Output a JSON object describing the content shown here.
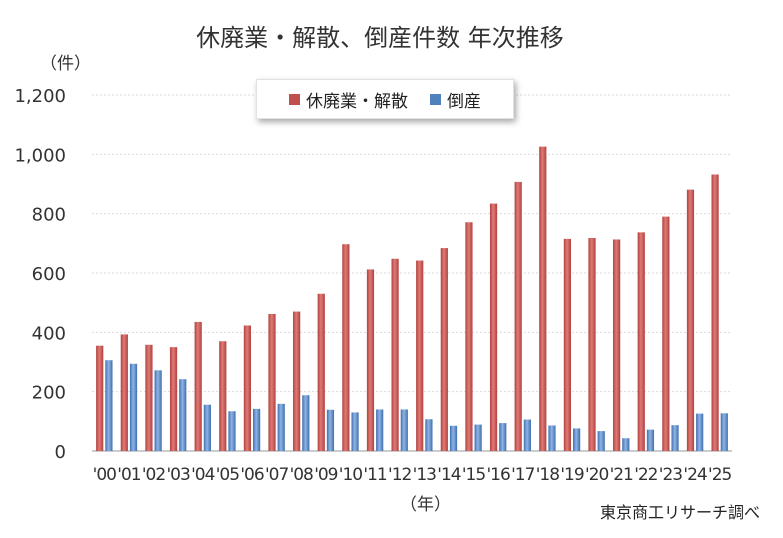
{
  "colors": {
    "closure": "#c0504d",
    "bankruptcy": "#4f81bd",
    "grid": "#d9d9d9",
    "text": "#333333"
  },
  "chart_data": {
    "type": "bar",
    "title": "休廃業・解散、倒産件数 年次推移",
    "ylabel": "（件）",
    "xlabel": "（年）",
    "ylim": [
      0,
      1200
    ],
    "yticks": [
      0,
      200,
      400,
      600,
      800,
      1000,
      1200
    ],
    "ytick_labels": [
      "0",
      "200",
      "400",
      "600",
      "800",
      "1,000",
      "1,200"
    ],
    "categories": [
      "'00",
      "'01",
      "'02",
      "'03",
      "'04",
      "'05",
      "'06",
      "'07",
      "'08",
      "'09",
      "'10",
      "'11",
      "'12",
      "'13",
      "'14",
      "'15",
      "'16",
      "'17",
      "'18",
      "'19",
      "'20",
      "'21",
      "'22",
      "'23",
      "'24",
      "'25"
    ],
    "series": [
      {
        "name": "休廃業・解散",
        "values": [
          355,
          393,
          358,
          350,
          435,
          370,
          423,
          462,
          470,
          530,
          697,
          612,
          648,
          642,
          684,
          771,
          834,
          907,
          1026,
          715,
          718,
          713,
          737,
          790,
          881,
          932
        ]
      },
      {
        "name": "倒産",
        "values": [
          306,
          294,
          272,
          242,
          156,
          134,
          142,
          159,
          188,
          139,
          130,
          140,
          140,
          107,
          85,
          89,
          94,
          106,
          86,
          76,
          67,
          43,
          72,
          87,
          126,
          127
        ]
      }
    ],
    "grid": true,
    "legend_position": "top-center",
    "source_note": "東京商工リサーチ調べ"
  }
}
